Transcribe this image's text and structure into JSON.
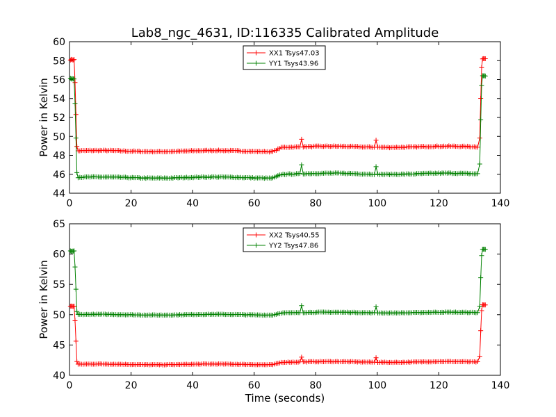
{
  "figure": {
    "title": "Lab8_ngc_4631, ID:116335 Calibrated Amplitude",
    "xlabel": "Time (seconds)"
  },
  "chart_data": [
    {
      "type": "line",
      "ylabel": "Power in Kelvin",
      "xlim": [
        0,
        140
      ],
      "ylim": [
        44,
        60
      ],
      "xticks": [
        0,
        20,
        40,
        60,
        80,
        100,
        120,
        140
      ],
      "yticks": [
        44,
        46,
        48,
        50,
        52,
        54,
        56,
        58,
        60
      ],
      "legend_position": "top-center",
      "series": [
        {
          "name": "XX1 Tsys47.03",
          "color": "#ff0000",
          "profile": {
            "start": 58.1,
            "base": 48.45,
            "mid": 48.9,
            "end": 58.2,
            "spike_75": 49.7,
            "spike_100": 49.6
          }
        },
        {
          "name": "YY1 Tsys43.96",
          "color": "#008000",
          "profile": {
            "start": 56.1,
            "base": 45.65,
            "mid": 46.05,
            "end": 56.4,
            "spike_75": 47.0,
            "spike_100": 46.8
          }
        }
      ]
    },
    {
      "type": "line",
      "ylabel": "Power in Kelvin",
      "xlim": [
        0,
        140
      ],
      "ylim": [
        40,
        65
      ],
      "xticks": [
        0,
        20,
        40,
        60,
        80,
        100,
        120,
        140
      ],
      "yticks": [
        40,
        45,
        50,
        55,
        60,
        65
      ],
      "legend_position": "top-center",
      "series": [
        {
          "name": "XX2 Tsys40.55",
          "color": "#ff0000",
          "profile": {
            "start": 51.4,
            "base": 41.8,
            "mid": 42.2,
            "end": 51.6,
            "spike_75": 43.0,
            "spike_100": 42.9
          }
        },
        {
          "name": "YY2 Tsys47.86",
          "color": "#008000",
          "profile": {
            "start": 60.5,
            "base": 50.0,
            "mid": 50.35,
            "end": 60.8,
            "spike_75": 51.5,
            "spike_100": 51.3
          }
        }
      ]
    }
  ]
}
